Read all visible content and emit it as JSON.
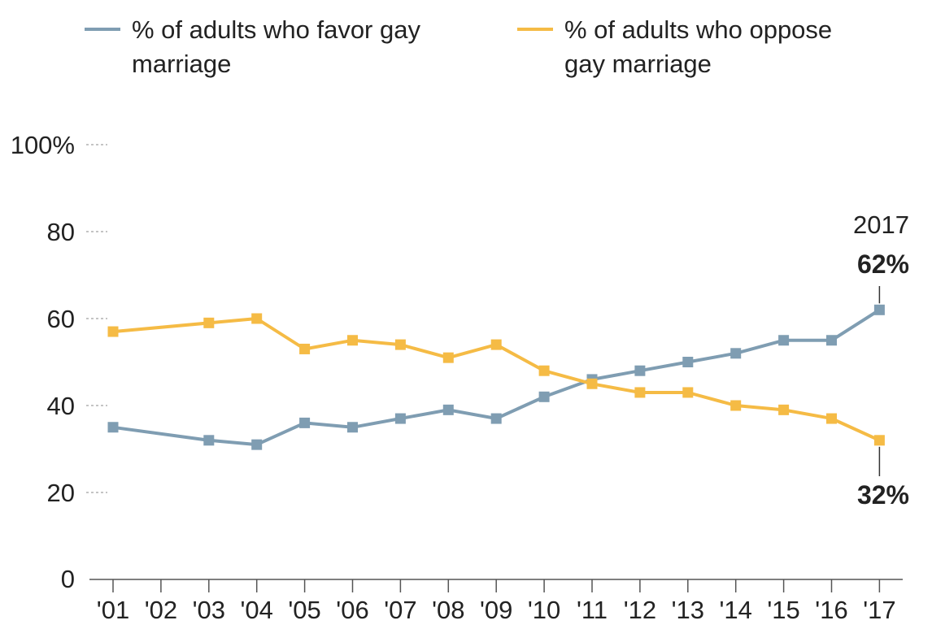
{
  "chart_data": {
    "type": "line",
    "x": [
      "'01",
      "'02",
      "'03",
      "'04",
      "'05",
      "'06",
      "'07",
      "'08",
      "'09",
      "'10",
      "'11",
      "'12",
      "'13",
      "'14",
      "'15",
      "'16",
      "'17"
    ],
    "series": [
      {
        "name": "% of adults who favor gay marriage",
        "color": "#7f9db2",
        "values": [
          35,
          null,
          32,
          31,
          36,
          35,
          37,
          39,
          37,
          42,
          46,
          48,
          50,
          52,
          55,
          55,
          62
        ]
      },
      {
        "name": "% of adults who oppose gay marriage",
        "color": "#f5bb45",
        "values": [
          57,
          null,
          59,
          60,
          53,
          55,
          54,
          51,
          54,
          48,
          45,
          43,
          43,
          40,
          39,
          37,
          32
        ]
      }
    ],
    "yticks": [
      0,
      20,
      40,
      60,
      80,
      100
    ],
    "ytick_labels": [
      "0",
      "20",
      "40",
      "60",
      "80",
      "100%"
    ],
    "ylim": [
      0,
      100
    ],
    "legend_position": "top",
    "grid": false,
    "annotations": {
      "year": "2017",
      "favor_label": "62%",
      "oppose_label": "32%"
    }
  }
}
